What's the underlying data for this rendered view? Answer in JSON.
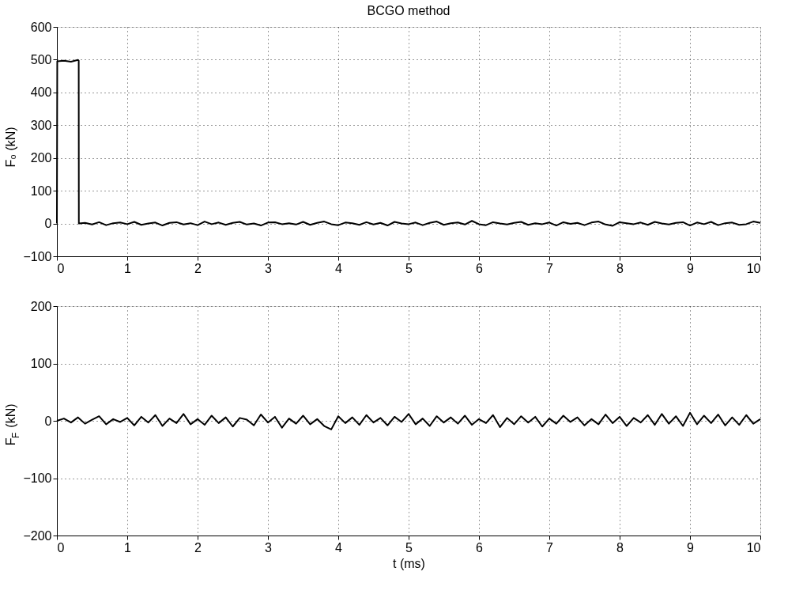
{
  "chart_data": [
    {
      "type": "line",
      "title": "BCGO method",
      "ylabel": "F₀ (kN)",
      "xlim": [
        0,
        10
      ],
      "xticks": [
        0,
        1,
        2,
        3,
        4,
        5,
        6,
        7,
        8,
        9,
        10
      ],
      "ylim": [
        -100,
        600
      ],
      "yticks": [
        -100,
        0,
        100,
        200,
        300,
        400,
        500,
        600
      ],
      "grid": true,
      "line_style": "solid",
      "series": [
        {
          "color": "#000000",
          "x": [
            0,
            0.005,
            0.1,
            0.2,
            0.3,
            0.31,
            0.312,
            0.4,
            0.5,
            0.6,
            0.7,
            0.8,
            0.9,
            1.0,
            1.1,
            1.2,
            1.3,
            1.4,
            1.5,
            1.6,
            1.7,
            1.8,
            1.9,
            2.0,
            2.1,
            2.2,
            2.3,
            2.4,
            2.5,
            2.6,
            2.7,
            2.8,
            2.9,
            3.0,
            3.1,
            3.2,
            3.3,
            3.4,
            3.5,
            3.6,
            3.7,
            3.8,
            3.9,
            4.0,
            4.1,
            4.2,
            4.3,
            4.4,
            4.5,
            4.6,
            4.7,
            4.8,
            4.9,
            5.0,
            5.1,
            5.2,
            5.3,
            5.4,
            5.5,
            5.6,
            5.7,
            5.8,
            5.9,
            6.0,
            6.1,
            6.2,
            6.3,
            6.4,
            6.5,
            6.6,
            6.7,
            6.8,
            6.9,
            7.0,
            7.1,
            7.2,
            7.3,
            7.4,
            7.5,
            7.6,
            7.7,
            7.8,
            7.9,
            8.0,
            8.1,
            8.2,
            8.3,
            8.4,
            8.5,
            8.6,
            8.7,
            8.8,
            8.9,
            9.0,
            9.1,
            9.2,
            9.3,
            9.4,
            9.5,
            9.6,
            9.7,
            9.8,
            9.9,
            10.0
          ],
          "values": [
            0,
            495,
            497,
            494,
            499,
            497,
            0,
            2,
            -3,
            4,
            -5,
            1,
            3,
            -2,
            5,
            -4,
            0,
            3,
            -6,
            2,
            4,
            -3,
            1,
            -5,
            6,
            -2,
            3,
            -4,
            2,
            5,
            -3,
            0,
            -6,
            3,
            4,
            -2,
            1,
            -3,
            5,
            -4,
            2,
            6,
            -2,
            -5,
            3,
            1,
            -4,
            4,
            -3,
            2,
            -6,
            5,
            0,
            -2,
            3,
            -5,
            2,
            6,
            -4,
            1,
            3,
            -3,
            8,
            -2,
            -5,
            4,
            0,
            -3,
            2,
            5,
            -4,
            1,
            -2,
            3,
            -6,
            4,
            -1,
            2,
            -5,
            3,
            6,
            -3,
            -7,
            4,
            1,
            -2,
            3,
            -4,
            5,
            0,
            -3,
            2,
            4,
            -6,
            3,
            -2,
            5,
            -5,
            1,
            3,
            -4,
            -2,
            6,
            2
          ]
        }
      ]
    },
    {
      "type": "line",
      "xlabel": "t (ms)",
      "ylabel": "F$_{F}$ (kN)",
      "xlim": [
        0,
        10
      ],
      "xticks": [
        0,
        1,
        2,
        3,
        4,
        5,
        6,
        7,
        8,
        9,
        10
      ],
      "ylim": [
        -200,
        200
      ],
      "yticks": [
        -200,
        -100,
        0,
        100,
        200
      ],
      "grid": true,
      "line_style": "solid",
      "series": [
        {
          "color": "#000000",
          "x": [
            0,
            0.1,
            0.2,
            0.3,
            0.4,
            0.5,
            0.6,
            0.7,
            0.8,
            0.9,
            1.0,
            1.1,
            1.2,
            1.3,
            1.4,
            1.5,
            1.6,
            1.7,
            1.8,
            1.9,
            2.0,
            2.1,
            2.2,
            2.3,
            2.4,
            2.5,
            2.6,
            2.7,
            2.8,
            2.9,
            3.0,
            3.1,
            3.2,
            3.3,
            3.4,
            3.5,
            3.6,
            3.7,
            3.8,
            3.9,
            4.0,
            4.1,
            4.2,
            4.3,
            4.4,
            4.5,
            4.6,
            4.7,
            4.8,
            4.9,
            5.0,
            5.1,
            5.2,
            5.3,
            5.4,
            5.5,
            5.6,
            5.7,
            5.8,
            5.9,
            6.0,
            6.1,
            6.2,
            6.3,
            6.4,
            6.5,
            6.6,
            6.7,
            6.8,
            6.9,
            7.0,
            7.1,
            7.2,
            7.3,
            7.4,
            7.5,
            7.6,
            7.7,
            7.8,
            7.9,
            8.0,
            8.1,
            8.2,
            8.3,
            8.4,
            8.5,
            8.6,
            8.7,
            8.8,
            8.9,
            9.0,
            9.1,
            9.2,
            9.3,
            9.4,
            9.5,
            9.6,
            9.7,
            9.8,
            9.9,
            10.0
          ],
          "values": [
            0,
            4,
            -3,
            6,
            -5,
            2,
            8,
            -6,
            3,
            -2,
            5,
            -8,
            7,
            -3,
            10,
            -9,
            4,
            -4,
            12,
            -6,
            3,
            -7,
            9,
            -4,
            6,
            -10,
            5,
            2,
            -8,
            11,
            -3,
            7,
            -12,
            4,
            -5,
            9,
            -6,
            3,
            -9,
            -15,
            8,
            -4,
            6,
            -7,
            10,
            -3,
            5,
            -8,
            7,
            -2,
            12,
            -6,
            4,
            -9,
            8,
            -3,
            6,
            -5,
            9,
            -7,
            3,
            -4,
            10,
            -11,
            5,
            -6,
            8,
            -3,
            7,
            -10,
            4,
            -5,
            9,
            -2,
            6,
            -8,
            3,
            -6,
            11,
            -4,
            7,
            -9,
            5,
            -3,
            10,
            -7,
            12,
            -5,
            8,
            -9,
            14,
            -6,
            9,
            -4,
            11,
            -8,
            6,
            -7,
            10,
            -5,
            3
          ]
        }
      ]
    }
  ]
}
